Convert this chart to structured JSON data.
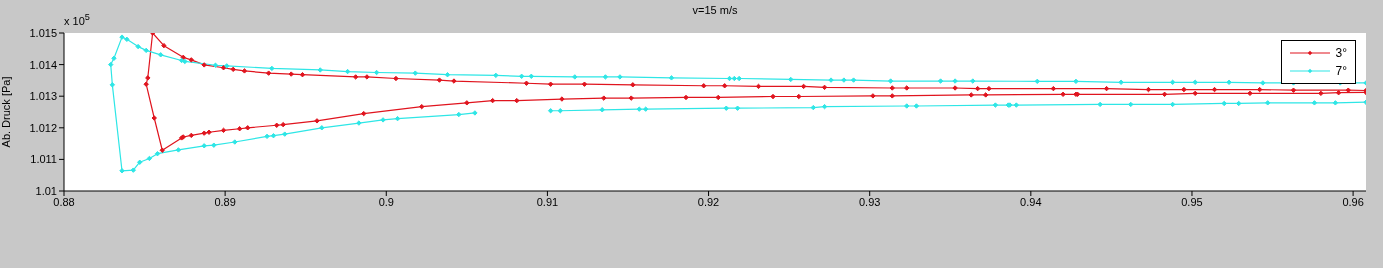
{
  "chart_data": {
    "type": "line",
    "title": "v=15 m/s",
    "ylabel": "Ab. Druck [Pa]",
    "annotations": [
      "x 10$^{5}$"
    ],
    "xlim": [
      0.88,
      0.9608
    ],
    "xticks": [
      0.88,
      0.89,
      0.9,
      0.91,
      0.92,
      0.93,
      0.94,
      0.95,
      0.96
    ],
    "ylim": [
      1.01,
      1.015
    ],
    "yticks": [
      1.01,
      1.011,
      1.012,
      1.013,
      1.014,
      1.015
    ],
    "grid": false,
    "legend": "top right",
    "marker": "diamond",
    "line_style": "solid",
    "series": [
      {
        "name": "3°",
        "color": "#e0141e",
        "x": [
          0.9608,
          0.9597,
          0.9563,
          0.9542,
          0.9514,
          0.9495,
          0.9473,
          0.9447,
          0.9414,
          0.9374,
          0.9367,
          0.9353,
          0.9323,
          0.9314,
          0.9272,
          0.9259,
          0.9231,
          0.921,
          0.9197,
          0.9153,
          0.9123,
          0.9102,
          0.9087,
          0.9042,
          0.9033,
          0.9006,
          0.8988,
          0.8981,
          0.8948,
          0.8941,
          0.8927,
          0.8912,
          0.8905,
          0.8899,
          0.8887,
          0.8879,
          0.8874,
          0.8862,
          0.8855,
          0.8852,
          0.8851,
          0.8856,
          0.8861,
          0.8873,
          0.8874,
          0.8879,
          0.8887,
          0.889,
          0.8899,
          0.8909,
          0.8914,
          0.8932,
          0.8936,
          0.8957,
          0.8986,
          0.9022,
          0.905,
          0.9066,
          0.9081,
          0.9109,
          0.9135,
          0.9152,
          0.9186,
          0.9206,
          0.924,
          0.9256,
          0.9302,
          0.9314,
          0.9363,
          0.9372,
          0.942,
          0.9428,
          0.9429,
          0.9483,
          0.9502,
          0.9536,
          0.958,
          0.9591,
          0.9608
        ],
        "values": [
          1.01318,
          1.01319,
          1.01319,
          1.01321,
          1.01321,
          1.01321,
          1.01321,
          1.01324,
          1.01324,
          1.01324,
          1.01324,
          1.01326,
          1.01326,
          1.01326,
          1.01328,
          1.01331,
          1.01331,
          1.01333,
          1.01333,
          1.01336,
          1.01338,
          1.01338,
          1.01341,
          1.01348,
          1.01351,
          1.01356,
          1.01361,
          1.01361,
          1.01368,
          1.0137,
          1.01373,
          1.0138,
          1.01385,
          1.0139,
          1.01399,
          1.01415,
          1.01423,
          1.0146,
          1.015,
          1.01358,
          1.01338,
          1.01231,
          1.01129,
          1.01168,
          1.01171,
          1.01176,
          1.01183,
          1.01186,
          1.01192,
          1.01197,
          1.012,
          1.01208,
          1.0121,
          1.01222,
          1.01245,
          1.01267,
          1.01279,
          1.01286,
          1.01286,
          1.01291,
          1.01294,
          1.01294,
          1.01296,
          1.01296,
          1.01299,
          1.01299,
          1.01301,
          1.01301,
          1.01304,
          1.01304,
          1.01306,
          1.01306,
          1.01306,
          1.01306,
          1.01309,
          1.01309,
          1.01309,
          1.01311,
          1.01312
        ]
      },
      {
        "name": "7°",
        "color": "#2ee6e6",
        "x": [
          0.9608,
          0.9592,
          0.9563,
          0.9544,
          0.9523,
          0.9502,
          0.9488,
          0.9456,
          0.9428,
          0.9404,
          0.9364,
          0.9353,
          0.9344,
          0.9313,
          0.929,
          0.9284,
          0.9276,
          0.9251,
          0.9219,
          0.9216,
          0.9213,
          0.9177,
          0.9145,
          0.9136,
          0.9117,
          0.909,
          0.9084,
          0.9068,
          0.9038,
          0.9018,
          0.8994,
          0.8976,
          0.8959,
          0.8929,
          0.8901,
          0.8894,
          0.8875,
          0.8873,
          0.886,
          0.8851,
          0.8846,
          0.8839,
          0.8836,
          0.8831,
          0.8829,
          0.883,
          0.8836,
          0.8843,
          0.8847,
          0.8853,
          0.8858,
          0.8871,
          0.8887,
          0.8893,
          0.8906,
          0.8926,
          0.893,
          0.8937,
          0.896,
          0.8983,
          0.8998,
          0.9007,
          0.9045,
          0.9055,
          0.908,
          0.9102,
          0.9108,
          0.9134,
          0.9157,
          0.9161,
          0.9211,
          0.9218,
          0.9265,
          0.9272,
          0.9323,
          0.9329,
          0.9378,
          0.9386,
          0.9387,
          0.9391,
          0.9443,
          0.9462,
          0.9488,
          0.952,
          0.9529,
          0.9547,
          0.9576,
          0.9589,
          0.9608
        ],
        "values": [
          1.01342,
          1.01342,
          1.01342,
          1.01342,
          1.01344,
          1.01344,
          1.01344,
          1.01344,
          1.01347,
          1.01347,
          1.01348,
          1.01348,
          1.01348,
          1.01348,
          1.01351,
          1.01351,
          1.01351,
          1.01353,
          1.01356,
          1.01356,
          1.01356,
          1.01358,
          1.01361,
          1.01361,
          1.01361,
          1.01363,
          1.01363,
          1.01366,
          1.01368,
          1.01373,
          1.01375,
          1.01378,
          1.01383,
          1.01388,
          1.01396,
          1.01398,
          1.0141,
          1.01413,
          1.01431,
          1.01445,
          1.01457,
          1.0148,
          1.01487,
          1.0142,
          1.014,
          1.01336,
          1.01064,
          1.01066,
          1.01091,
          1.01103,
          1.01118,
          1.0113,
          1.01143,
          1.01145,
          1.01155,
          1.01173,
          1.01175,
          1.0118,
          1.012,
          1.01215,
          1.01225,
          1.01229,
          1.01242,
          1.01247,
          null,
          1.01254,
          1.01254,
          1.01257,
          1.01259,
          1.01259,
          1.01262,
          1.01262,
          1.01264,
          1.01267,
          1.01269,
          1.01269,
          1.01272,
          1.01272,
          1.01272,
          1.01272,
          1.01274,
          1.01274,
          1.01274,
          1.01277,
          1.01277,
          1.01279,
          1.01279,
          1.01279,
          1.01281
        ]
      }
    ]
  }
}
